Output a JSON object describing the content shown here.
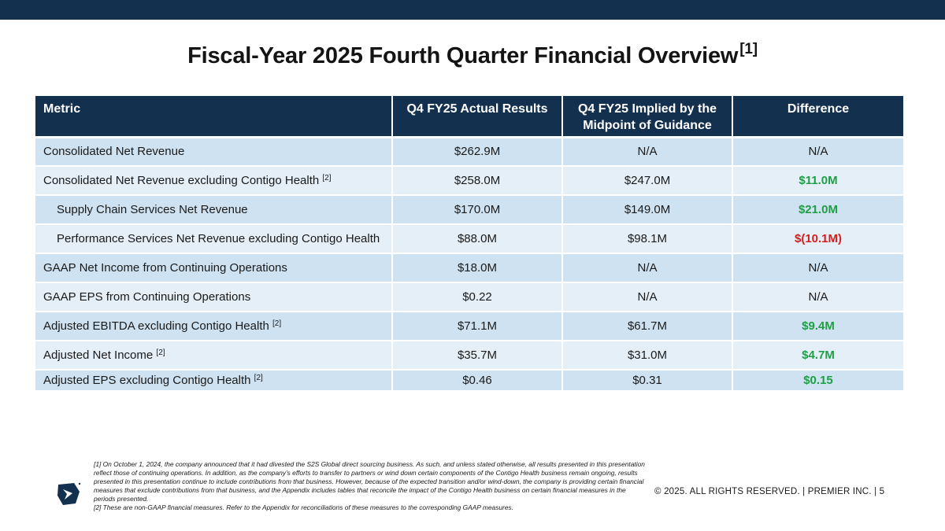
{
  "title": {
    "text": "Fiscal-Year 2025 Fourth Quarter Financial Overview",
    "note": "[1]"
  },
  "table": {
    "headers": {
      "metric": "Metric",
      "actual": "Q4 FY25 Actual Results",
      "implied": "Q4 FY25 Implied by the Midpoint of Guidance",
      "difference": "Difference"
    },
    "rows": [
      {
        "metric": "Consolidated Net Revenue",
        "note": "",
        "actual": "$262.9M",
        "implied": "N/A",
        "difference": "N/A"
      },
      {
        "metric": "Consolidated Net Revenue excluding Contigo Health",
        "note": "[2]",
        "actual": "$258.0M",
        "implied": "$247.0M",
        "difference": "$11.0M"
      },
      {
        "metric": "Supply Chain Services Net Revenue",
        "note": "",
        "actual": "$170.0M",
        "implied": "$149.0M",
        "difference": "$21.0M"
      },
      {
        "metric": "Performance Services Net Revenue excluding Contigo Health",
        "note": "",
        "actual": "$88.0M",
        "implied": "$98.1M",
        "difference": "$(10.1M)"
      },
      {
        "metric": "GAAP Net Income from Continuing Operations",
        "note": "",
        "actual": "$18.0M",
        "implied": "N/A",
        "difference": "N/A"
      },
      {
        "metric": "GAAP EPS from Continuing Operations",
        "note": "",
        "actual": "$0.22",
        "implied": "N/A",
        "difference": "N/A"
      },
      {
        "metric": "Adjusted EBITDA excluding Contigo Health",
        "note": "[2]",
        "actual": "$71.1M",
        "implied": "$61.7M",
        "difference": "$9.4M"
      },
      {
        "metric": "Adjusted Net Income",
        "note": "[2]",
        "actual": "$35.7M",
        "implied": "$31.0M",
        "difference": "$4.7M"
      },
      {
        "metric": "Adjusted EPS excluding Contigo Health",
        "note": "[2]",
        "actual": "$0.46",
        "implied": "$0.31",
        "difference": "$0.15"
      }
    ]
  },
  "footnotes": [
    "[1] On October 1, 2024, the company announced that it had divested the S2S Global direct sourcing business. As such, and unless stated otherwise, all results presented in this presentation reflect those of continuing operations. In addition, as the company’s efforts to transfer to partners or wind down certain components of the Contigo Health business remain ongoing, results presented in this presentation continue to include contributions from that business. However, because of the expected transition and/or wind-down, the company is providing certain financial measures that exclude contributions from that business, and the Appendix includes tables that reconcile the impact of the Contigo Health business on certain financial measures in the periods presented.",
    "[2] These are non-GAAP financial measures. Refer to the Appendix for reconciliations of these measures to the corresponding GAAP measures."
  ],
  "footer": {
    "text": "© 2025. ALL RIGHTS RESERVED.  |  PREMIER INC.  |  5"
  },
  "logo": {
    "icon": "premier-logo-icon",
    "color": "#13304f"
  },
  "colors": {
    "header": "#13304f",
    "row_dark": "#cfe2f1",
    "row_light": "#e4eff8",
    "positive": "#1f9e45",
    "negative": "#d21f1f"
  }
}
